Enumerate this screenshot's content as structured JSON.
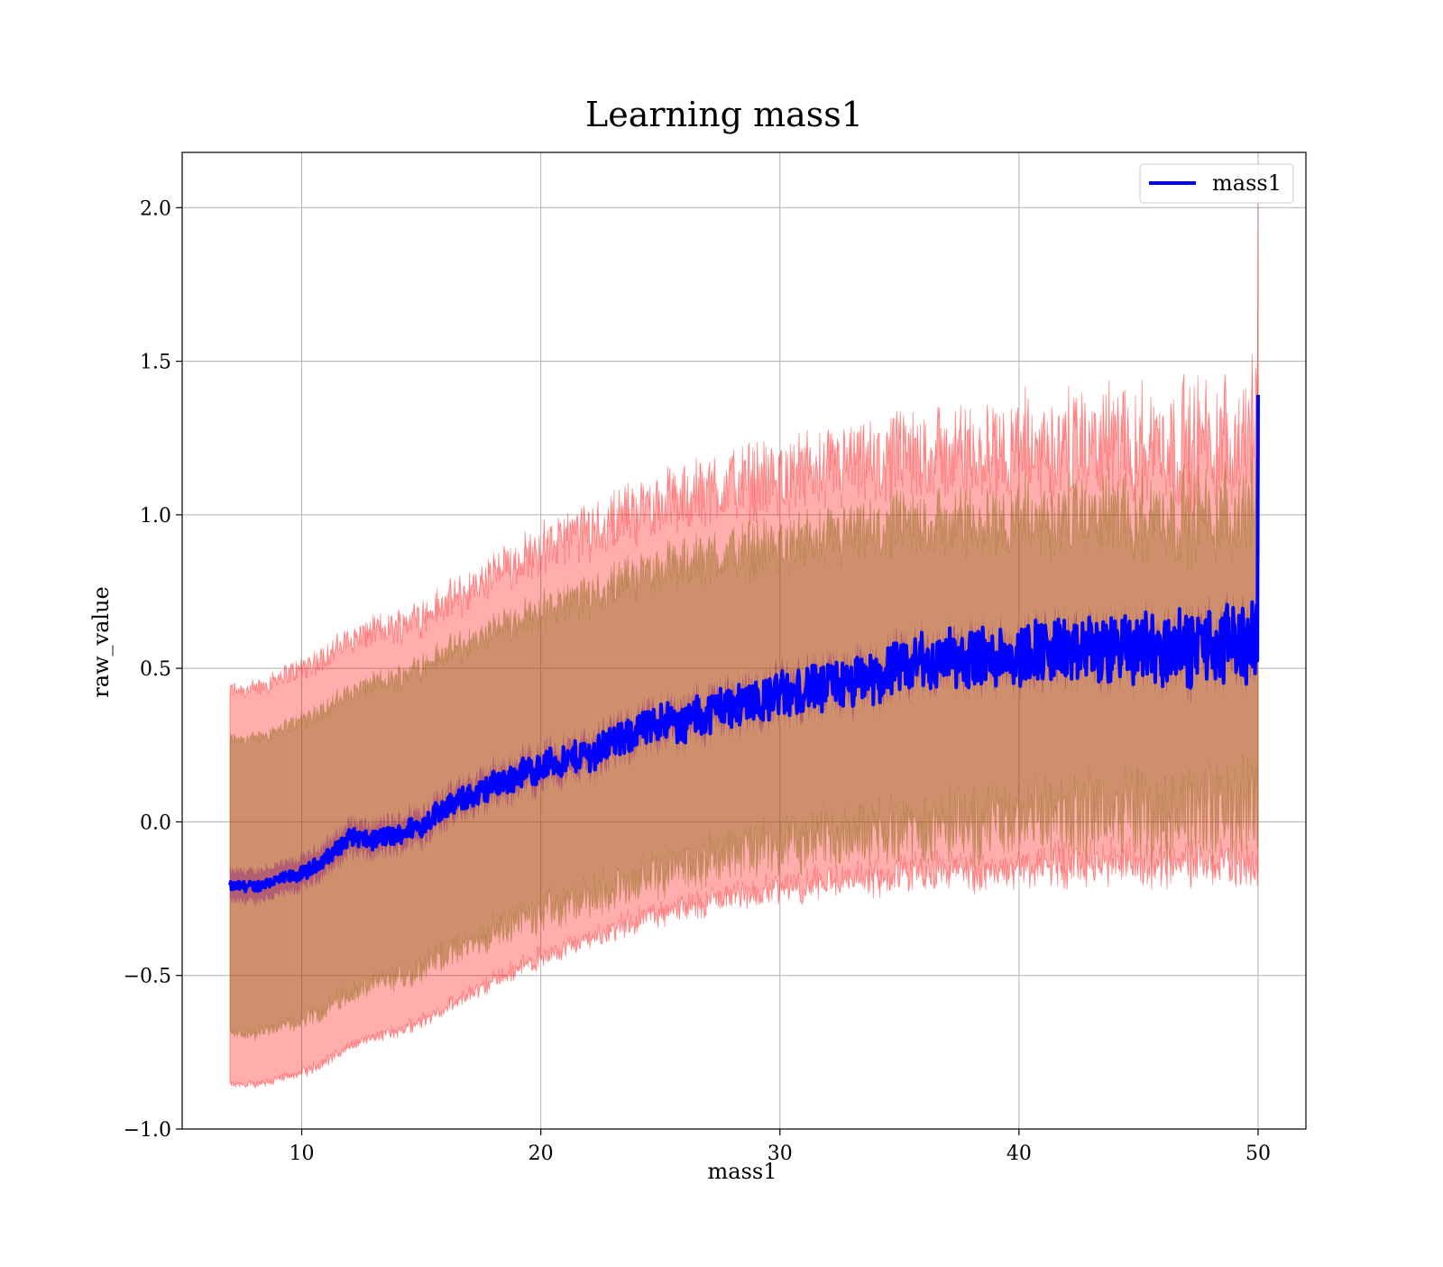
{
  "chart_data": {
    "type": "line",
    "title": "Learning mass1",
    "xlabel": "mass1",
    "ylabel": "raw_value",
    "xlim": [
      5,
      52
    ],
    "ylim": [
      -1.0,
      2.18
    ],
    "xticks": [
      10,
      20,
      30,
      40,
      50
    ],
    "xtick_labels": [
      "10",
      "20",
      "30",
      "40",
      "50"
    ],
    "yticks": [
      -1.0,
      -0.5,
      0.0,
      0.5,
      1.0,
      1.5,
      2.0
    ],
    "ytick_labels": [
      "−1.0",
      "−0.5",
      "0.0",
      "0.5",
      "1.0",
      "1.5",
      "2.0"
    ],
    "grid": true,
    "legend_position": "top-right",
    "colors": {
      "line": "#0000ff",
      "band_outer": "#ff0000",
      "band_inner": "#8b6914",
      "band_core": "#800080",
      "grid": "#b0b0b0"
    },
    "series": [
      {
        "name": "mass1",
        "x": [
          7.0,
          8.0,
          9.0,
          10.0,
          11.0,
          12.0,
          13.0,
          14.0,
          15.0,
          16.0,
          17.0,
          18.0,
          19.0,
          20.0,
          21.0,
          22.0,
          23.0,
          24.0,
          25.0,
          26.0,
          27.0,
          28.0,
          29.0,
          30.0,
          31.0,
          32.0,
          33.0,
          34.0,
          35.0,
          36.0,
          37.0,
          38.0,
          39.0,
          40.0,
          41.0,
          42.0,
          43.0,
          44.0,
          45.0,
          46.0,
          47.0,
          48.0,
          49.0,
          50.0
        ],
        "y": [
          -0.21,
          -0.21,
          -0.19,
          -0.17,
          -0.12,
          -0.05,
          -0.06,
          -0.04,
          -0.01,
          0.05,
          0.08,
          0.12,
          0.15,
          0.18,
          0.2,
          0.22,
          0.26,
          0.29,
          0.33,
          0.32,
          0.36,
          0.38,
          0.4,
          0.41,
          0.43,
          0.44,
          0.45,
          0.47,
          0.5,
          0.52,
          0.53,
          0.53,
          0.54,
          0.55,
          0.56,
          0.55,
          0.56,
          0.56,
          0.57,
          0.56,
          0.57,
          0.57,
          0.58,
          0.6
        ],
        "outer_band": {
          "upper": [
            0.43,
            0.43,
            0.47,
            0.5,
            0.54,
            0.59,
            0.62,
            0.64,
            0.67,
            0.71,
            0.75,
            0.8,
            0.85,
            0.89,
            0.92,
            0.95,
            0.98,
            1.01,
            1.04,
            1.05,
            1.08,
            1.1,
            1.11,
            1.12,
            1.13,
            1.14,
            1.15,
            1.16,
            1.18,
            1.19,
            1.2,
            1.2,
            1.21,
            1.22,
            1.22,
            1.22,
            1.23,
            1.23,
            1.24,
            1.23,
            1.24,
            1.24,
            1.25,
            1.3
          ],
          "lower": [
            -0.85,
            -0.85,
            -0.83,
            -0.81,
            -0.77,
            -0.72,
            -0.69,
            -0.67,
            -0.63,
            -0.59,
            -0.55,
            -0.5,
            -0.46,
            -0.42,
            -0.39,
            -0.36,
            -0.33,
            -0.3,
            -0.27,
            -0.26,
            -0.23,
            -0.21,
            -0.2,
            -0.19,
            -0.18,
            -0.17,
            -0.16,
            -0.15,
            -0.14,
            -0.13,
            -0.12,
            -0.12,
            -0.11,
            -0.1,
            -0.1,
            -0.1,
            -0.09,
            -0.09,
            -0.09,
            -0.09,
            -0.08,
            -0.08,
            -0.08,
            -0.1
          ]
        },
        "inner_band": {
          "upper": [
            0.27,
            0.27,
            0.3,
            0.33,
            0.37,
            0.42,
            0.45,
            0.47,
            0.51,
            0.55,
            0.58,
            0.62,
            0.66,
            0.69,
            0.71,
            0.74,
            0.77,
            0.8,
            0.83,
            0.84,
            0.86,
            0.88,
            0.89,
            0.9,
            0.91,
            0.92,
            0.93,
            0.94,
            0.96,
            0.97,
            0.97,
            0.98,
            0.98,
            0.99,
            0.99,
            0.99,
            1.0,
            1.0,
            1.0,
            1.0,
            1.0,
            1.0,
            1.01,
            1.05
          ],
          "lower": [
            -0.69,
            -0.69,
            -0.67,
            -0.65,
            -0.61,
            -0.56,
            -0.53,
            -0.51,
            -0.47,
            -0.43,
            -0.4,
            -0.36,
            -0.32,
            -0.29,
            -0.27,
            -0.25,
            -0.22,
            -0.19,
            -0.16,
            -0.15,
            -0.12,
            -0.1,
            -0.09,
            -0.08,
            -0.07,
            -0.06,
            -0.05,
            -0.04,
            -0.03,
            -0.02,
            -0.01,
            -0.01,
            0.0,
            0.01,
            0.01,
            0.01,
            0.02,
            0.02,
            0.02,
            0.02,
            0.03,
            0.03,
            0.03,
            0.05
          ]
        },
        "core_band_halfwidth": 0.05
      }
    ]
  }
}
